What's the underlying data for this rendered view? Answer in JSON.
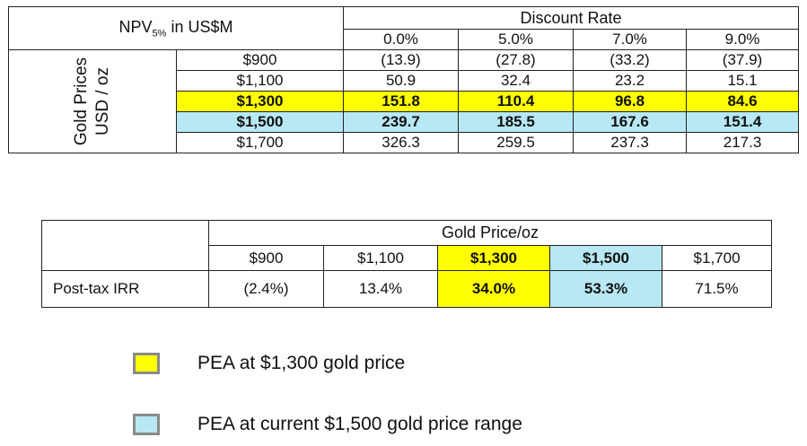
{
  "npv_table": {
    "title": "NPV",
    "title_sub": "5%",
    "title_suffix": " in US$M",
    "discount_header": "Discount Rate",
    "rates": [
      "0.0%",
      "5.0%",
      "7.0%",
      "9.0%"
    ],
    "row_label_line1": "Gold Prices",
    "row_label_line2": "USD / oz",
    "rows": [
      {
        "price": "$900",
        "values": [
          "(13.9)",
          "(27.8)",
          "(33.2)",
          "(37.9)"
        ],
        "highlight": ""
      },
      {
        "price": "$1,100",
        "values": [
          "50.9",
          "32.4",
          "23.2",
          "15.1"
        ],
        "highlight": ""
      },
      {
        "price": "$1,300",
        "values": [
          "151.8",
          "110.4",
          "96.8",
          "84.6"
        ],
        "highlight": "yellow"
      },
      {
        "price": "$1,500",
        "values": [
          "239.7",
          "185.5",
          "167.6",
          "151.4"
        ],
        "highlight": "blue"
      },
      {
        "price": "$1,700",
        "values": [
          "326.3",
          "259.5",
          "237.3",
          "217.3"
        ],
        "highlight": ""
      }
    ]
  },
  "irr_table": {
    "header": "Gold Price/oz",
    "prices": [
      "$900",
      "$1,100",
      "$1,300",
      "$1,500",
      "$1,700"
    ],
    "row_label": "Post-tax IRR",
    "values": [
      "(2.4%)",
      "13.4%",
      "34.0%",
      "53.3%",
      "71.5%"
    ],
    "highlights": [
      "",
      "",
      "yellow",
      "blue",
      ""
    ]
  },
  "legend": [
    {
      "label": "PEA at $1,300 gold price",
      "color": "#ffff00"
    },
    {
      "label": "PEA at current $1,500 gold price range",
      "color": "#b7e8f3"
    }
  ]
}
